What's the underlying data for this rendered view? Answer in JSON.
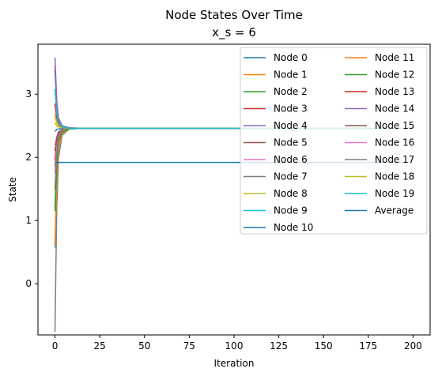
{
  "chart_data": {
    "type": "line",
    "title": "Node States Over Time",
    "subtitle": "x_s = 6",
    "xlabel": "Iteration",
    "ylabel": "State",
    "xlim": [
      -9.5,
      209.5
    ],
    "ylim": [
      -0.81,
      3.79
    ],
    "xticks": [
      0,
      25,
      50,
      75,
      100,
      125,
      150,
      175,
      200
    ],
    "yticks": [
      0,
      1,
      2,
      3
    ],
    "grid": false,
    "legend_position": "top-right",
    "legend_columns": 2,
    "converged_value": 2.46,
    "average_value": 1.92,
    "series": [
      {
        "name": "Node 0",
        "color": "#1f77b4",
        "values": [
          [
            0,
            2.41
          ],
          [
            1,
            2.44
          ],
          [
            2,
            2.45
          ],
          [
            4,
            2.455
          ],
          [
            8,
            2.46
          ],
          [
            15,
            2.46
          ],
          [
            200,
            2.46
          ]
        ]
      },
      {
        "name": "Node 1",
        "color": "#ff7f0e",
        "values": [
          [
            0,
            2.65
          ],
          [
            1,
            2.55
          ],
          [
            2,
            2.5
          ],
          [
            4,
            2.47
          ],
          [
            8,
            2.46
          ],
          [
            15,
            2.46
          ],
          [
            200,
            2.46
          ]
        ]
      },
      {
        "name": "Node 2",
        "color": "#2ca02c",
        "values": [
          [
            0,
            1.2
          ],
          [
            1,
            1.95
          ],
          [
            2,
            2.25
          ],
          [
            4,
            2.4
          ],
          [
            8,
            2.45
          ],
          [
            15,
            2.46
          ],
          [
            200,
            2.46
          ]
        ]
      },
      {
        "name": "Node 3",
        "color": "#d62728",
        "values": [
          [
            0,
            2.85
          ],
          [
            1,
            2.62
          ],
          [
            2,
            2.52
          ],
          [
            4,
            2.48
          ],
          [
            8,
            2.46
          ],
          [
            15,
            2.46
          ],
          [
            200,
            2.46
          ]
        ]
      },
      {
        "name": "Node 4",
        "color": "#9467bd",
        "values": [
          [
            0,
            3.58
          ],
          [
            1,
            2.9
          ],
          [
            2,
            2.62
          ],
          [
            4,
            2.5
          ],
          [
            8,
            2.47
          ],
          [
            15,
            2.46
          ],
          [
            200,
            2.46
          ]
        ]
      },
      {
        "name": "Node 5",
        "color": "#8c564b",
        "values": [
          [
            0,
            1.85
          ],
          [
            1,
            2.2
          ],
          [
            2,
            2.35
          ],
          [
            4,
            2.43
          ],
          [
            8,
            2.46
          ],
          [
            15,
            2.46
          ],
          [
            200,
            2.46
          ]
        ]
      },
      {
        "name": "Node 6",
        "color": "#e377c2",
        "values": [
          [
            0,
            2.2
          ],
          [
            1,
            2.33
          ],
          [
            2,
            2.4
          ],
          [
            4,
            2.44
          ],
          [
            8,
            2.46
          ],
          [
            15,
            2.46
          ],
          [
            200,
            2.46
          ]
        ]
      },
      {
        "name": "Node 7",
        "color": "#7f7f7f",
        "values": [
          [
            0,
            -0.76
          ],
          [
            1,
            1.2
          ],
          [
            2,
            2.0
          ],
          [
            4,
            2.35
          ],
          [
            8,
            2.45
          ],
          [
            15,
            2.46
          ],
          [
            200,
            2.46
          ]
        ]
      },
      {
        "name": "Node 8",
        "color": "#bcbd22",
        "values": [
          [
            0,
            2.68
          ],
          [
            1,
            2.56
          ],
          [
            2,
            2.5
          ],
          [
            4,
            2.47
          ],
          [
            8,
            2.46
          ],
          [
            15,
            2.46
          ],
          [
            200,
            2.46
          ]
        ]
      },
      {
        "name": "Node 9",
        "color": "#17becf",
        "values": [
          [
            0,
            0.57
          ],
          [
            1,
            1.65
          ],
          [
            2,
            2.15
          ],
          [
            4,
            2.38
          ],
          [
            8,
            2.45
          ],
          [
            15,
            2.46
          ],
          [
            200,
            2.46
          ]
        ]
      },
      {
        "name": "Node 10",
        "color": "#1f77b4",
        "values": [
          [
            0,
            3.38
          ],
          [
            1,
            2.8
          ],
          [
            2,
            2.58
          ],
          [
            4,
            2.49
          ],
          [
            8,
            2.46
          ],
          [
            15,
            2.46
          ],
          [
            200,
            2.46
          ]
        ]
      },
      {
        "name": "Node 11",
        "color": "#ff7f0e",
        "values": [
          [
            0,
            0.6
          ],
          [
            1,
            1.7
          ],
          [
            2,
            2.15
          ],
          [
            4,
            2.38
          ],
          [
            8,
            2.45
          ],
          [
            15,
            2.46
          ],
          [
            200,
            2.46
          ]
        ]
      },
      {
        "name": "Node 12",
        "color": "#2ca02c",
        "values": [
          [
            0,
            1.15
          ],
          [
            1,
            1.9
          ],
          [
            2,
            2.25
          ],
          [
            4,
            2.4
          ],
          [
            8,
            2.45
          ],
          [
            15,
            2.46
          ],
          [
            200,
            2.46
          ]
        ]
      },
      {
        "name": "Node 13",
        "color": "#d62728",
        "values": [
          [
            0,
            1.95
          ],
          [
            1,
            2.25
          ],
          [
            2,
            2.38
          ],
          [
            4,
            2.44
          ],
          [
            8,
            2.46
          ],
          [
            15,
            2.46
          ],
          [
            200,
            2.46
          ]
        ]
      },
      {
        "name": "Node 14",
        "color": "#9467bd",
        "values": [
          [
            0,
            3.45
          ],
          [
            1,
            2.85
          ],
          [
            2,
            2.6
          ],
          [
            4,
            2.49
          ],
          [
            8,
            2.46
          ],
          [
            15,
            2.46
          ],
          [
            200,
            2.46
          ]
        ]
      },
      {
        "name": "Node 15",
        "color": "#8c564b",
        "values": [
          [
            0,
            2.1
          ],
          [
            1,
            2.3
          ],
          [
            2,
            2.4
          ],
          [
            4,
            2.44
          ],
          [
            8,
            2.46
          ],
          [
            15,
            2.46
          ],
          [
            200,
            2.46
          ]
        ]
      },
      {
        "name": "Node 16",
        "color": "#e377c2",
        "values": [
          [
            0,
            1.75
          ],
          [
            1,
            2.15
          ],
          [
            2,
            2.33
          ],
          [
            4,
            2.43
          ],
          [
            8,
            2.46
          ],
          [
            15,
            2.46
          ],
          [
            200,
            2.46
          ]
        ]
      },
      {
        "name": "Node 17",
        "color": "#7f7f7f",
        "values": [
          [
            0,
            1.5
          ],
          [
            1,
            2.05
          ],
          [
            2,
            2.3
          ],
          [
            4,
            2.42
          ],
          [
            8,
            2.46
          ],
          [
            15,
            2.46
          ],
          [
            200,
            2.46
          ]
        ]
      },
      {
        "name": "Node 18",
        "color": "#bcbd22",
        "values": [
          [
            0,
            2.55
          ],
          [
            1,
            2.5
          ],
          [
            2,
            2.48
          ],
          [
            4,
            2.47
          ],
          [
            8,
            2.46
          ],
          [
            15,
            2.46
          ],
          [
            200,
            2.46
          ]
        ]
      },
      {
        "name": "Node 19",
        "color": "#17becf",
        "values": [
          [
            0,
            3.08
          ],
          [
            1,
            2.7
          ],
          [
            2,
            2.55
          ],
          [
            4,
            2.48
          ],
          [
            8,
            2.46
          ],
          [
            15,
            2.46
          ],
          [
            200,
            2.46
          ]
        ]
      },
      {
        "name": "Average",
        "color": "#1f77b4",
        "values": [
          [
            0,
            1.92
          ],
          [
            200,
            1.92
          ]
        ]
      }
    ]
  }
}
